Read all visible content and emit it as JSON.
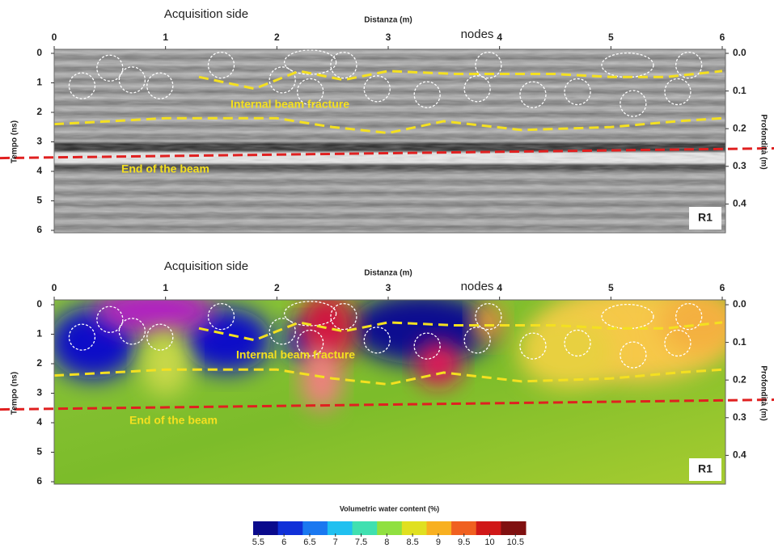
{
  "chart_data": [
    {
      "type": "heatmap",
      "style": "radargram",
      "title": "Acquisition side",
      "xlabel": "Distanza (m)",
      "ylabel": "Tempo (ns)",
      "y2label": "Profondità (m)",
      "xlim": [
        0,
        6
      ],
      "xticks": [
        0,
        1,
        2,
        3,
        4,
        5,
        6
      ],
      "ylim": [
        0,
        6
      ],
      "yticks": [
        0,
        1,
        2,
        3,
        4,
        5,
        6
      ],
      "y2lim": [
        0,
        0.47
      ],
      "y2ticks": [
        {
          "value": 0,
          "label": "0.0"
        },
        0.1,
        0.2,
        0.3,
        0.4
      ],
      "annotations": [
        "nodes",
        "Internal beam fracture",
        "End of the beam",
        "R1"
      ]
    },
    {
      "type": "heatmap",
      "style": "water",
      "title": "Acquisition side",
      "xlabel": "Distanza (m)",
      "ylabel": "Tempo (ns)",
      "y2label": "Profondità (m)",
      "xlim": [
        0,
        6
      ],
      "xticks": [
        0,
        1,
        2,
        3,
        4,
        5,
        6
      ],
      "ylim": [
        0,
        6
      ],
      "yticks": [
        0,
        1,
        2,
        3,
        4,
        5,
        6
      ],
      "y2lim": [
        0,
        0.47
      ],
      "y2ticks": [
        {
          "value": 0,
          "label": "0.0"
        },
        0.1,
        0.2,
        0.3,
        0.4
      ],
      "annotations": [
        "nodes",
        "Internal beam fracture",
        "End of the beam",
        "R1"
      ]
    },
    {
      "type": "colorbar",
      "title": "Volumetric water content (%)",
      "lim": [
        5.4,
        10.7
      ],
      "ticks": [
        5.5,
        6,
        6.5,
        7,
        7.5,
        8,
        8.5,
        9,
        9.5,
        10,
        10.5
      ],
      "colors": [
        "#0a0a8c",
        "#1030d8",
        "#1a78f0",
        "#20c0f0",
        "#40e0b0",
        "#90e040",
        "#e0e020",
        "#f8b020",
        "#f06020",
        "#d01818",
        "#801010"
      ]
    }
  ]
}
